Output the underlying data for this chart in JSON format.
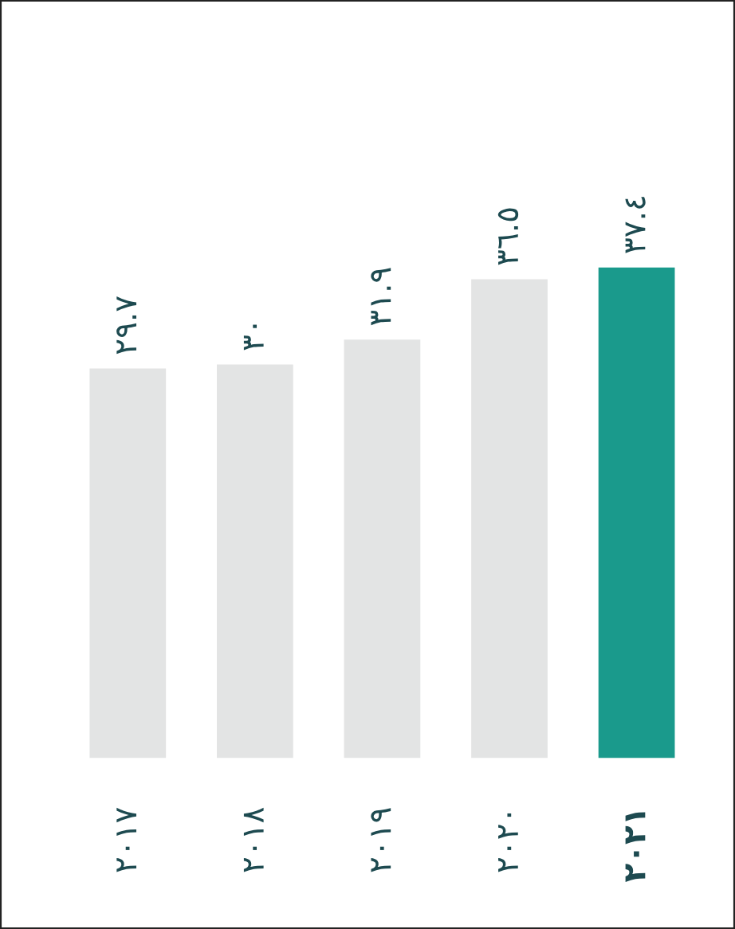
{
  "chart_data": {
    "type": "bar",
    "categories": [
      "٢٠١٧",
      "٢٠١٨",
      "٢٠١٩",
      "٢٠٢٠",
      "٢٠٢١"
    ],
    "values": [
      29.7,
      30,
      31.9,
      36.5,
      37.4
    ],
    "value_labels": [
      "٢٩.٧",
      "٣٠",
      "٣١.٩",
      "٣٦.٥",
      "٣٧.٤"
    ],
    "colors": [
      "#e3e4e4",
      "#e3e4e4",
      "#e3e4e4",
      "#e3e4e4",
      "#1a9a8c"
    ],
    "grid": false,
    "legend": false,
    "tick_labels": "x"
  }
}
